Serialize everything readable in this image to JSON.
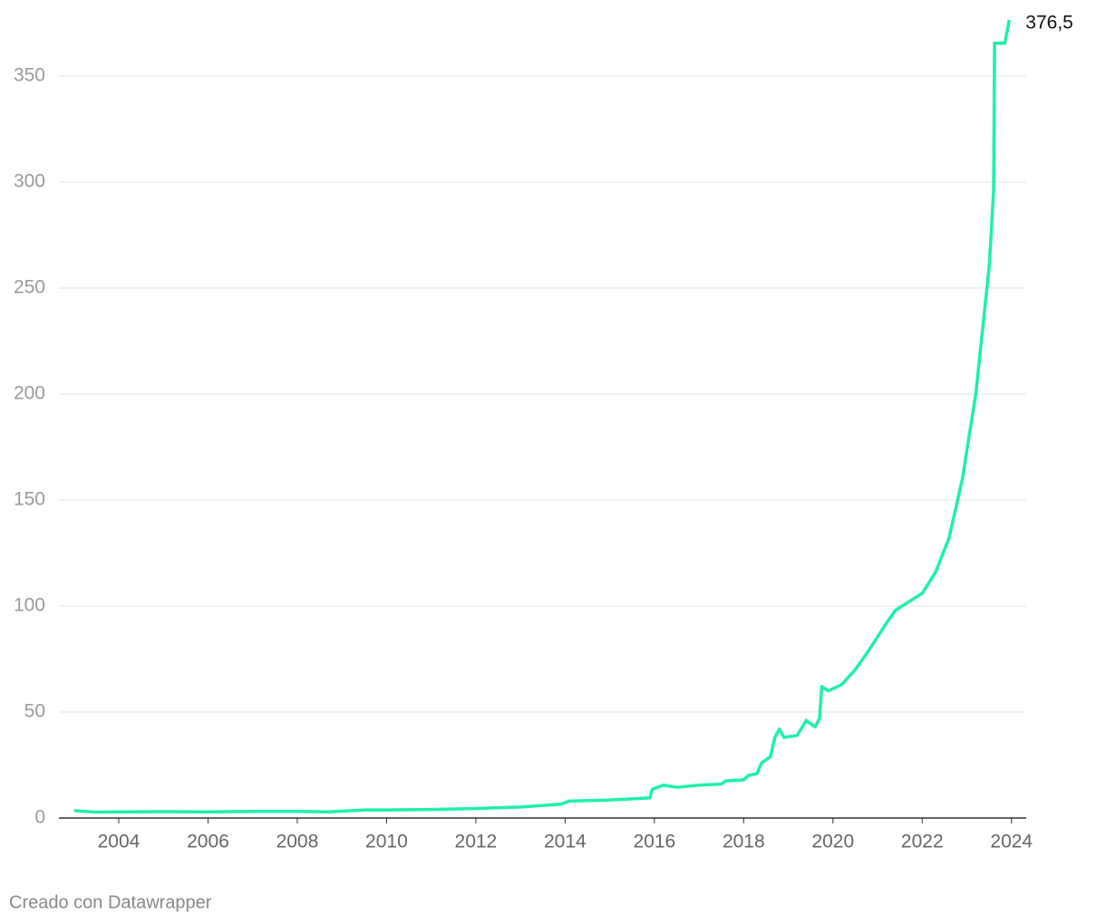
{
  "chart_data": {
    "type": "line",
    "color": "#1ff0a6",
    "x": [
      2003.0,
      2003.5,
      2004,
      2005,
      2006,
      2007,
      2008,
      2008.7,
      2009.5,
      2010,
      2011,
      2012,
      2013,
      2013.9,
      2014.1,
      2015,
      2015.9,
      2015.95,
      2016.2,
      2016.5,
      2017,
      2017.5,
      2017.6,
      2018,
      2018.1,
      2018.3,
      2018.4,
      2018.6,
      2018.7,
      2018.8,
      2018.9,
      2019.2,
      2019.4,
      2019.6,
      2019.7,
      2019.75,
      2019.9,
      2020.2,
      2020.5,
      2020.8,
      2021.2,
      2021.4,
      2022,
      2022.3,
      2022.6,
      2022.9,
      2023.2,
      2023.5,
      2023.6,
      2023.62,
      2023.85,
      2023.95
    ],
    "values": [
      3.5,
      2.8,
      2.9,
      3.0,
      2.9,
      3.1,
      3.1,
      2.9,
      3.8,
      3.8,
      4.0,
      4.5,
      5.2,
      6.5,
      8,
      8.5,
      9.5,
      13.5,
      15.5,
      14.5,
      15.5,
      16,
      17.5,
      18,
      20,
      21,
      26,
      29,
      38,
      42,
      38,
      39,
      46,
      43,
      47,
      62,
      60,
      63,
      70,
      79,
      92,
      98,
      106,
      116,
      132,
      160,
      200,
      260,
      296,
      365.5,
      365.5,
      376.5
    ],
    "value_labels": [
      null,
      null,
      null,
      null,
      null,
      null,
      null,
      null,
      null,
      null,
      null,
      null,
      null,
      null,
      null,
      null,
      null,
      null,
      null,
      null,
      null,
      null,
      null,
      null,
      null,
      null,
      null,
      null,
      null,
      null,
      null,
      null,
      null,
      null,
      null,
      null,
      null,
      null,
      null,
      null,
      null,
      null,
      null,
      null,
      null,
      null,
      null,
      null,
      null,
      null,
      null,
      "376,5"
    ],
    "xlim": [
      2002.66,
      2024.33
    ],
    "xticks": [
      2004,
      2006,
      2008,
      2010,
      2012,
      2014,
      2016,
      2018,
      2020,
      2022,
      2024
    ],
    "ylim": [
      0,
      376.5
    ],
    "yticks": [
      0,
      50,
      100,
      150,
      200,
      250,
      300,
      350
    ],
    "grid": true,
    "credit": "Creado con Datawrapper"
  }
}
